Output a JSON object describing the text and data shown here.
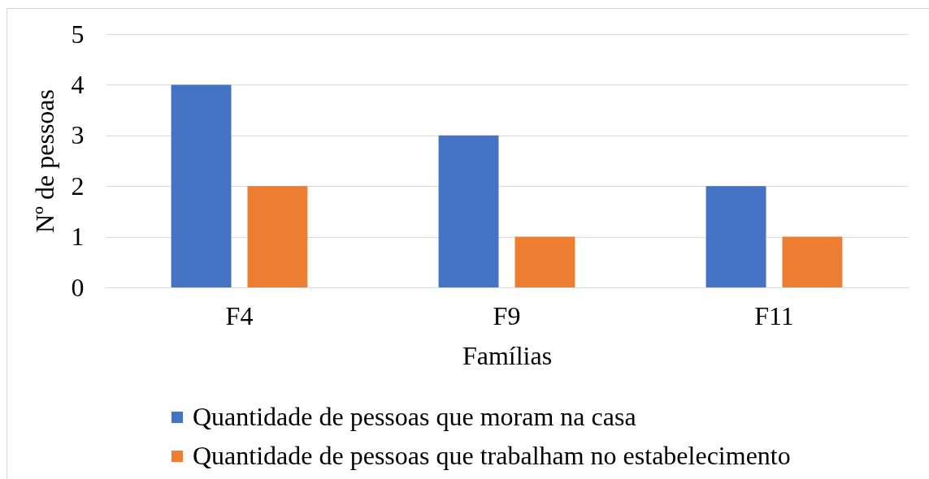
{
  "chart_data": {
    "type": "bar",
    "xlabel": "Famílias",
    "ylabel": "Nº de pessoas",
    "categories": [
      "F4",
      "F9",
      "F11"
    ],
    "series": [
      {
        "name": "Quantidade de pessoas que moram na casa",
        "color": "#4472c4",
        "values": [
          4,
          3,
          2
        ]
      },
      {
        "name": "Quantidade de pessoas que trabalham no estabelecimento",
        "color": "#ed7d31",
        "values": [
          2,
          1,
          1
        ]
      }
    ],
    "ylim": [
      0,
      5
    ],
    "yticks": [
      0,
      1,
      2,
      3,
      4,
      5
    ],
    "grid": "y",
    "legend": "bottom"
  }
}
